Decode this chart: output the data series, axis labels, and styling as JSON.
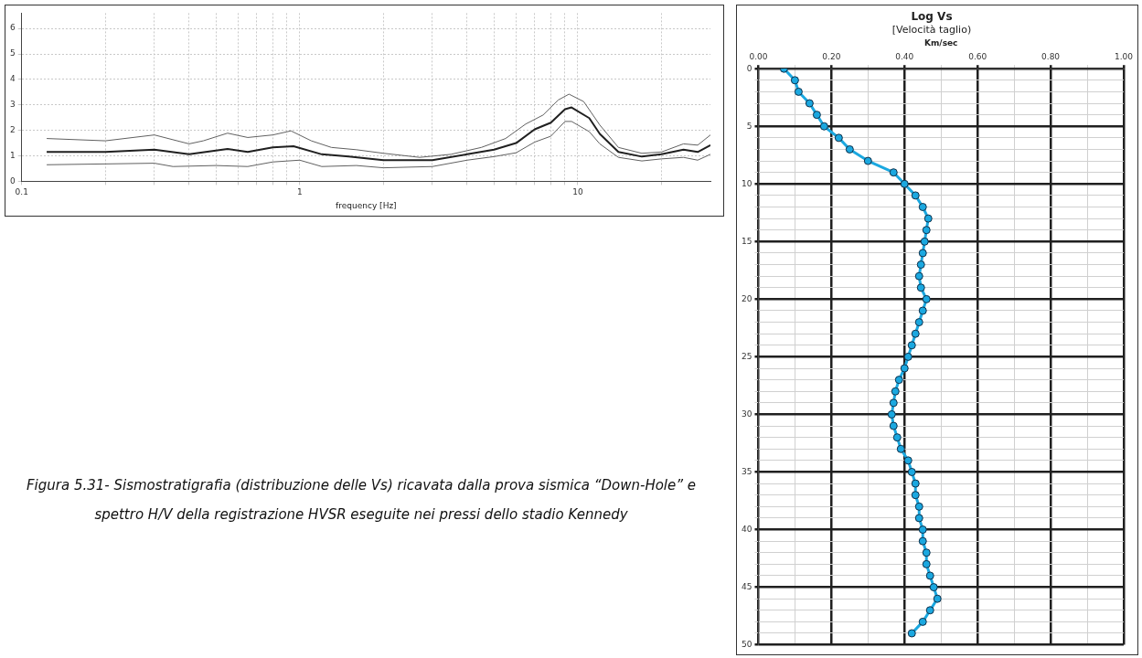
{
  "chart_data": [
    {
      "type": "line",
      "xlabel": "frequency [Hz]",
      "log": "x",
      "xlim": [
        0.1,
        30
      ],
      "ylim": [
        0,
        6.6
      ],
      "xticks": [
        {
          "value": 0.1,
          "label": "0.1"
        },
        {
          "value": 0.2,
          "label": null
        },
        {
          "value": 0.3,
          "label": null
        },
        {
          "value": 0.4,
          "label": null
        },
        {
          "value": 0.5,
          "label": null
        },
        {
          "value": 0.6,
          "label": null
        },
        {
          "value": 0.7,
          "label": null
        },
        {
          "value": 0.8,
          "label": null
        },
        {
          "value": 0.9,
          "label": null
        },
        1,
        {
          "value": 2,
          "label": null
        },
        {
          "value": 3,
          "label": null
        },
        {
          "value": 4,
          "label": null
        },
        {
          "value": 5,
          "label": null
        },
        {
          "value": 6,
          "label": null
        },
        {
          "value": 7,
          "label": null
        },
        {
          "value": 8,
          "label": null
        },
        {
          "value": 9,
          "label": null
        },
        10,
        {
          "value": 20,
          "label": null
        }
      ],
      "yticks": [
        0,
        1,
        2,
        3,
        4,
        5,
        6
      ],
      "grid": true,
      "marker": "none",
      "series": [
        {
          "color": "#202020",
          "x": [
            0.123,
            0.2,
            0.3,
            0.4,
            0.55,
            0.65,
            0.8,
            0.95,
            1.2,
            1.5,
            2,
            3,
            4,
            5,
            6,
            7,
            8,
            9,
            9.5,
            11,
            12,
            14,
            17,
            20,
            24,
            27,
            30
          ],
          "values": [
            1.15,
            1.15,
            1.24,
            1.06,
            1.27,
            1.15,
            1.33,
            1.38,
            1.06,
            0.97,
            0.83,
            0.83,
            1.06,
            1.24,
            1.5,
            2.04,
            2.3,
            2.83,
            2.9,
            2.48,
            1.86,
            1.15,
            0.97,
            1.06,
            1.24,
            1.15,
            1.42
          ]
        },
        {
          "color": "#606060",
          "x": [
            0.123,
            0.2,
            0.3,
            0.4,
            0.45,
            0.55,
            0.65,
            0.8,
            0.93,
            1.1,
            1.3,
            1.6,
            2,
            2.7,
            3.5,
            4.5,
            5.5,
            6.5,
            7.5,
            8.5,
            9.3,
            10.5,
            12,
            14,
            17,
            20,
            24,
            27,
            30
          ],
          "values": [
            1.68,
            1.59,
            1.82,
            1.47,
            1.59,
            1.89,
            1.72,
            1.82,
            1.98,
            1.59,
            1.33,
            1.24,
            1.1,
            0.94,
            1.06,
            1.33,
            1.68,
            2.25,
            2.6,
            3.19,
            3.42,
            3.13,
            2.21,
            1.33,
            1.1,
            1.15,
            1.47,
            1.42,
            1.82
          ]
        },
        {
          "color": "#606060",
          "x": [
            0.123,
            0.3,
            0.35,
            0.5,
            0.65,
            0.8,
            1,
            1.2,
            1.6,
            2,
            3,
            4,
            5,
            6,
            7,
            8,
            9,
            9.5,
            11,
            12,
            14,
            17,
            20,
            24,
            27,
            30
          ],
          "values": [
            0.65,
            0.71,
            0.58,
            0.62,
            0.58,
            0.76,
            0.83,
            0.58,
            0.62,
            0.53,
            0.58,
            0.83,
            0.97,
            1.12,
            1.54,
            1.77,
            2.35,
            2.35,
            1.95,
            1.47,
            0.94,
            0.8,
            0.88,
            0.94,
            0.83,
            1.06
          ]
        }
      ],
      "annotations": [
        "Figura 5.31- Sismostratigrafia (distribuzione delle Vs) ricavata dalla prova sismica “Down-Hole” e spettro H/V  della registrazione HVSR eseguite nei pressi dello stadio Kennedy"
      ]
    },
    {
      "type": "line",
      "title": "Log Vs",
      "subtitle": "[Velocità taglio)",
      "xlabel": "Km/sec",
      "xlim": [
        0,
        1
      ],
      "ylim": [
        50,
        0
      ],
      "xticks": [
        {
          "value": 0,
          "label": "0.00"
        },
        {
          "value": 0.1,
          "label": null
        },
        {
          "value": 0.2,
          "label": "0.20"
        },
        {
          "value": 0.3,
          "label": null
        },
        {
          "value": 0.4,
          "label": "0.40"
        },
        {
          "value": 0.5,
          "label": null
        },
        {
          "value": 0.6,
          "label": "0.60"
        },
        {
          "value": 0.7,
          "label": null
        },
        {
          "value": 0.8,
          "label": "0.80"
        },
        {
          "value": 0.9,
          "label": null
        },
        {
          "value": 1,
          "label": "1.00"
        }
      ],
      "yticks": [
        0,
        {
          "value": 1,
          "label": null
        },
        {
          "value": 2,
          "label": null
        },
        {
          "value": 3,
          "label": null
        },
        {
          "value": 4,
          "label": null
        },
        5,
        {
          "value": 6,
          "label": null
        },
        {
          "value": 7,
          "label": null
        },
        {
          "value": 8,
          "label": null
        },
        {
          "value": 9,
          "label": null
        },
        10,
        {
          "value": 11,
          "label": null
        },
        {
          "value": 12,
          "label": null
        },
        {
          "value": 13,
          "label": null
        },
        {
          "value": 14,
          "label": null
        },
        15,
        {
          "value": 16,
          "label": null
        },
        {
          "value": 17,
          "label": null
        },
        {
          "value": 18,
          "label": null
        },
        {
          "value": 19,
          "label": null
        },
        20,
        {
          "value": 21,
          "label": null
        },
        {
          "value": 22,
          "label": null
        },
        {
          "value": 23,
          "label": null
        },
        {
          "value": 24,
          "label": null
        },
        25,
        {
          "value": 26,
          "label": null
        },
        {
          "value": 27,
          "label": null
        },
        {
          "value": 28,
          "label": null
        },
        {
          "value": 29,
          "label": null
        },
        30,
        {
          "value": 31,
          "label": null
        },
        {
          "value": 32,
          "label": null
        },
        {
          "value": 33,
          "label": null
        },
        {
          "value": 34,
          "label": null
        },
        35,
        {
          "value": 36,
          "label": null
        },
        {
          "value": 37,
          "label": null
        },
        {
          "value": 38,
          "label": null
        },
        {
          "value": 39,
          "label": null
        },
        40,
        {
          "value": 41,
          "label": null
        },
        {
          "value": 42,
          "label": null
        },
        {
          "value": 43,
          "label": null
        },
        {
          "value": 44,
          "label": null
        },
        45,
        {
          "value": 46,
          "label": null
        },
        {
          "value": 47,
          "label": null
        },
        {
          "value": 48,
          "label": null
        },
        {
          "value": 49,
          "label": null
        },
        50
      ],
      "grid": true,
      "marker": "circle",
      "series": [
        {
          "color": "#1ba8e0",
          "x": [
            0.07,
            0.1,
            0.11,
            0.14,
            0.16,
            0.18,
            0.22,
            0.25,
            0.3,
            0.37,
            0.4,
            0.43,
            0.45,
            0.465,
            0.46,
            0.455,
            0.45,
            0.445,
            0.44,
            0.445,
            0.46,
            0.45,
            0.44,
            0.43,
            0.42,
            0.41,
            0.4,
            0.385,
            0.375,
            0.37,
            0.365,
            0.37,
            0.38,
            0.39,
            0.41,
            0.42,
            0.43,
            0.43,
            0.44,
            0.44,
            0.45,
            0.45,
            0.46,
            0.46,
            0.47,
            0.48,
            0.49,
            0.47,
            0.45,
            0.42
          ],
          "values": [
            0,
            1,
            2,
            3,
            4,
            5,
            6,
            7,
            8,
            9,
            10,
            11,
            12,
            13,
            14,
            15,
            16,
            17,
            18,
            19,
            20,
            21,
            22,
            23,
            24,
            25,
            26,
            27,
            28,
            29,
            30,
            31,
            32,
            33,
            34,
            35,
            36,
            37,
            38,
            39,
            40,
            41,
            42,
            43,
            44,
            45,
            46,
            47,
            48,
            49
          ]
        }
      ]
    }
  ]
}
